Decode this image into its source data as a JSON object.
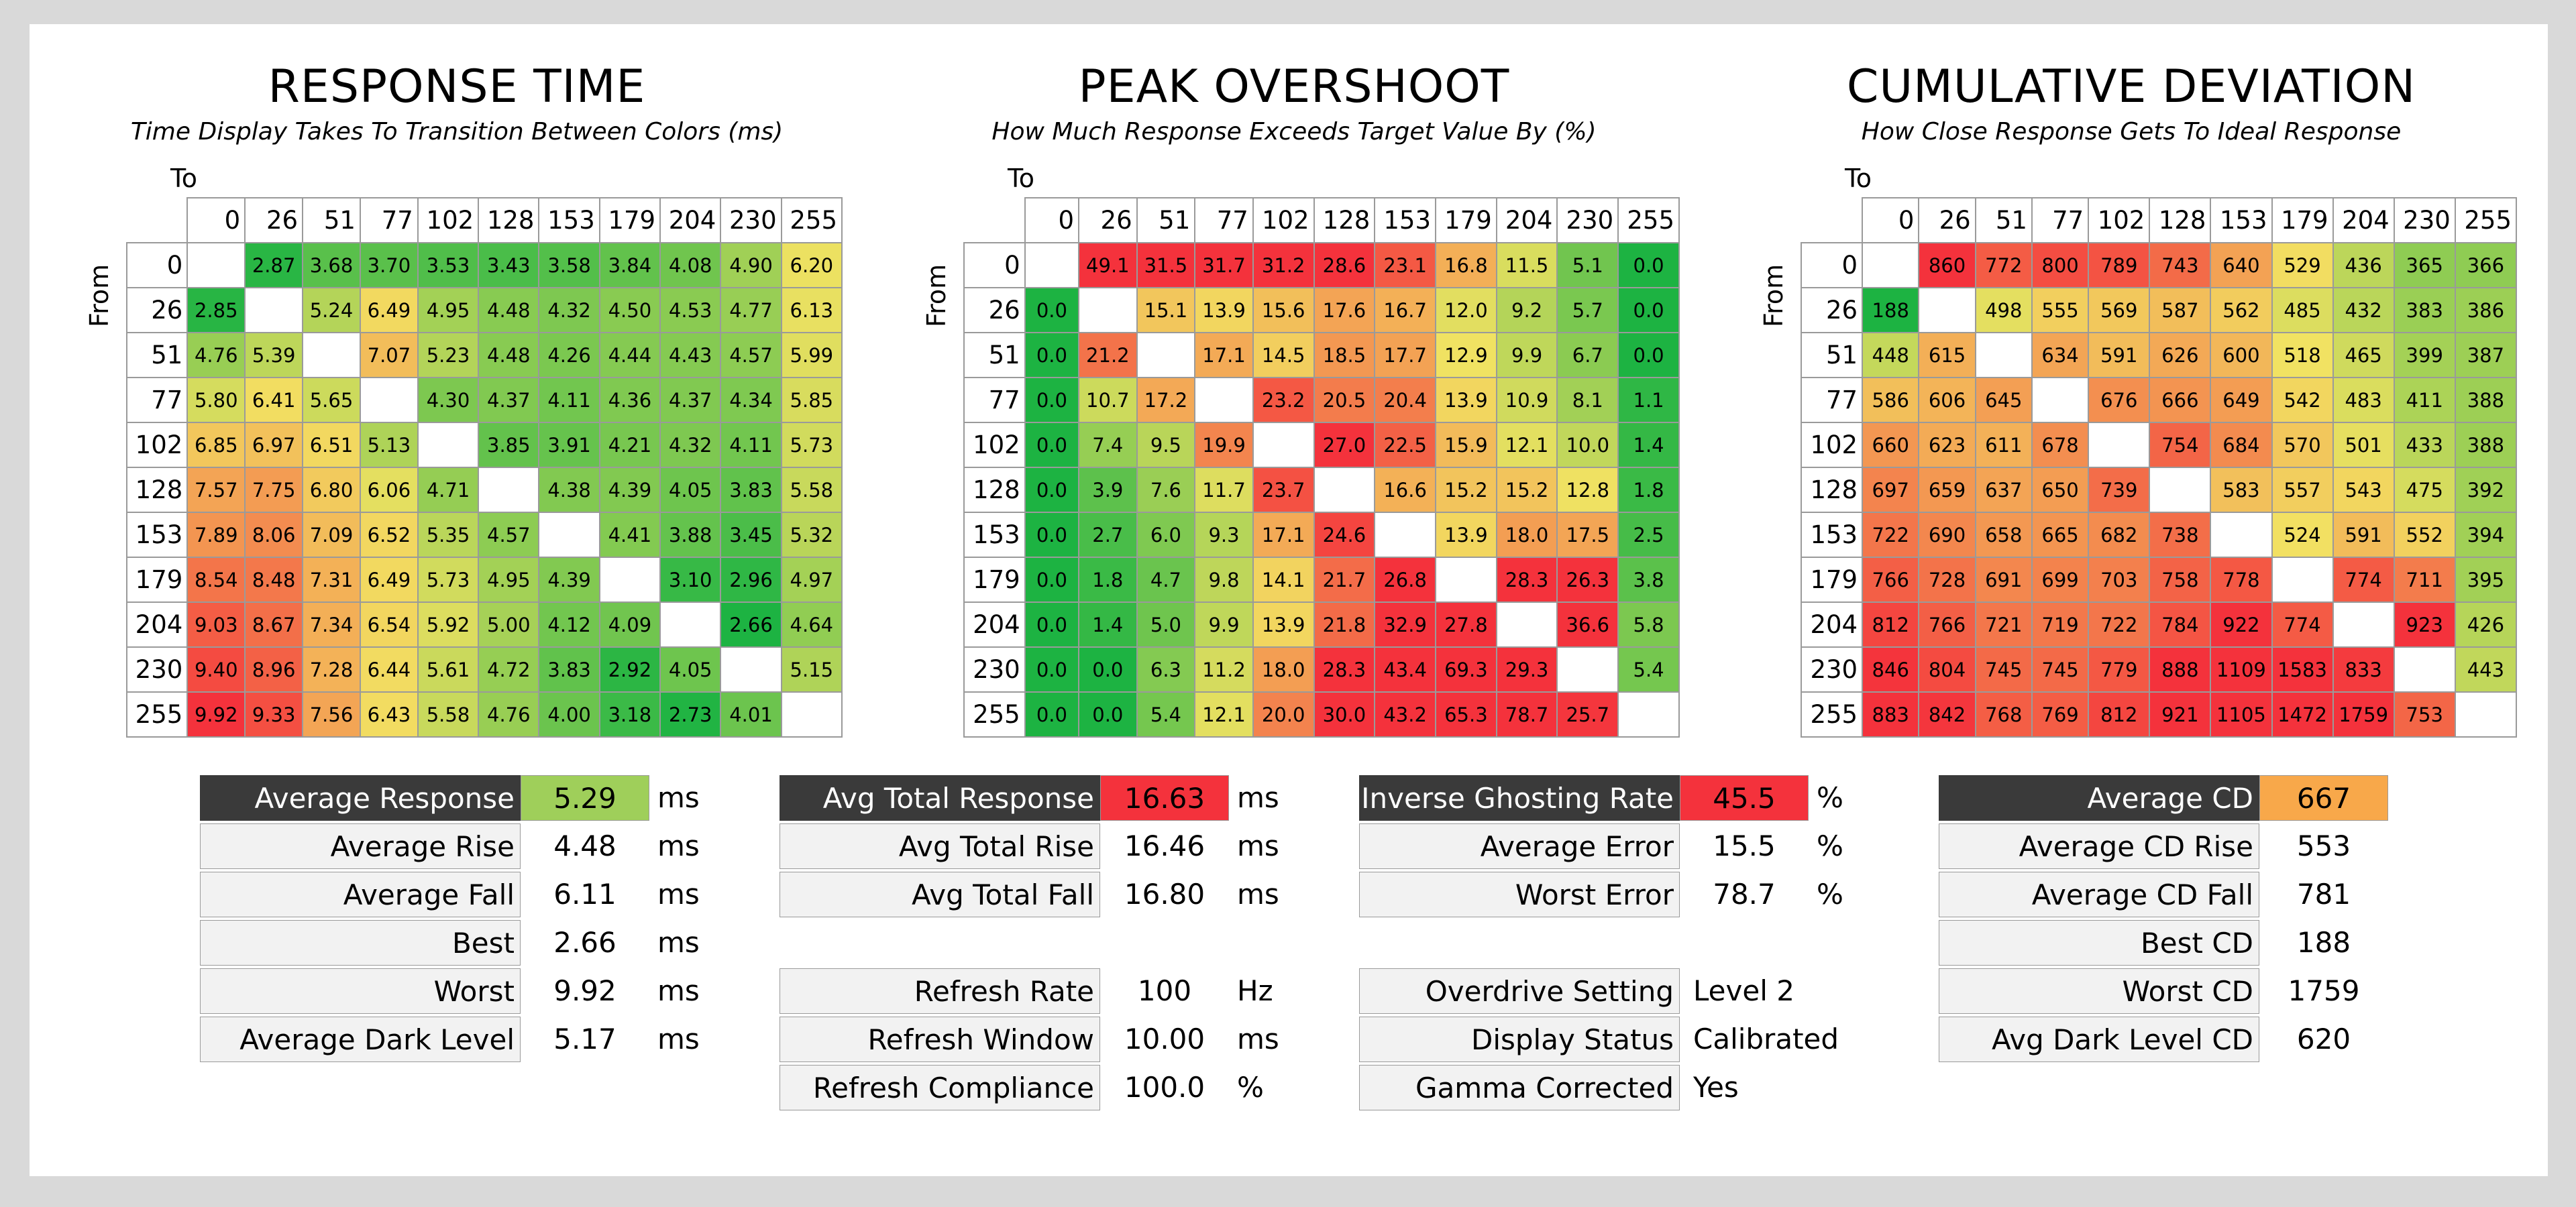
{
  "color_scale": {
    "good": "#1db342",
    "mid": "#f2e262",
    "bad": "#f4323c"
  },
  "panels": {
    "rt": {
      "title": "RESPONSE TIME",
      "subtitle": "Time Display Takes To Transition Between Colors (ms)",
      "to": "To",
      "from": "From"
    },
    "po": {
      "title": "PEAK OVERSHOOT",
      "subtitle": "How Much Response Exceeds Target Value By (%)",
      "to": "To",
      "from": "From"
    },
    "cd": {
      "title": "CUMULATIVE DEVIATION",
      "subtitle": "How Close Response Gets To Ideal Response",
      "to": "To",
      "from": "From"
    }
  },
  "chart_data": [
    {
      "type": "heatmap",
      "id": "rt",
      "title": "RESPONSE TIME",
      "subtitle": "Time Display Takes To Transition Between Colors (ms)",
      "xlabel": "To",
      "ylabel": "From",
      "x": [
        "0",
        "26",
        "51",
        "77",
        "102",
        "128",
        "153",
        "179",
        "204",
        "230",
        "255"
      ],
      "y": [
        "0",
        "26",
        "51",
        "77",
        "102",
        "128",
        "153",
        "179",
        "204",
        "230",
        "255"
      ],
      "decimals": 2,
      "scale": [
        2.66,
        6.3,
        9.92
      ],
      "values": [
        [
          null,
          2.87,
          3.68,
          3.7,
          3.53,
          3.43,
          3.58,
          3.84,
          4.08,
          4.9,
          6.2
        ],
        [
          2.85,
          null,
          5.24,
          6.49,
          4.95,
          4.48,
          4.32,
          4.5,
          4.53,
          4.77,
          6.13
        ],
        [
          4.76,
          5.39,
          null,
          7.07,
          5.23,
          4.48,
          4.26,
          4.44,
          4.43,
          4.57,
          5.99
        ],
        [
          5.8,
          6.41,
          5.65,
          null,
          4.3,
          4.37,
          4.11,
          4.36,
          4.37,
          4.34,
          5.85
        ],
        [
          6.85,
          6.97,
          6.51,
          5.13,
          null,
          3.85,
          3.91,
          4.21,
          4.32,
          4.11,
          5.73
        ],
        [
          7.57,
          7.75,
          6.8,
          6.06,
          4.71,
          null,
          4.38,
          4.39,
          4.05,
          3.83,
          5.58
        ],
        [
          7.89,
          8.06,
          7.09,
          6.52,
          5.35,
          4.57,
          null,
          4.41,
          3.88,
          3.45,
          5.32
        ],
        [
          8.54,
          8.48,
          7.31,
          6.49,
          5.73,
          4.95,
          4.39,
          null,
          3.1,
          2.96,
          4.97
        ],
        [
          9.03,
          8.67,
          7.34,
          6.54,
          5.92,
          5.0,
          4.12,
          4.09,
          null,
          2.66,
          4.64
        ],
        [
          9.4,
          8.96,
          7.28,
          6.44,
          5.61,
          4.72,
          3.83,
          2.92,
          4.05,
          null,
          5.15
        ],
        [
          9.92,
          9.33,
          7.56,
          6.43,
          5.58,
          4.76,
          4.0,
          3.18,
          2.73,
          4.01,
          null
        ]
      ]
    },
    {
      "type": "heatmap",
      "id": "po",
      "title": "PEAK OVERSHOOT",
      "subtitle": "How Much Response Exceeds Target Value By (%)",
      "xlabel": "To",
      "ylabel": "From",
      "x": [
        "0",
        "26",
        "51",
        "77",
        "102",
        "128",
        "153",
        "179",
        "204",
        "230",
        "255"
      ],
      "y": [
        "0",
        "26",
        "51",
        "77",
        "102",
        "128",
        "153",
        "179",
        "204",
        "230",
        "255"
      ],
      "decimals": 1,
      "scale": [
        0,
        13,
        26
      ],
      "values": [
        [
          null,
          49.1,
          31.5,
          31.7,
          31.2,
          28.6,
          23.1,
          16.8,
          11.5,
          5.1,
          0.0
        ],
        [
          0.0,
          null,
          15.1,
          13.9,
          15.6,
          17.6,
          16.7,
          12.0,
          9.2,
          5.7,
          0.0
        ],
        [
          0.0,
          21.2,
          null,
          17.1,
          14.5,
          18.5,
          17.7,
          12.9,
          9.9,
          6.7,
          0.0
        ],
        [
          0.0,
          10.7,
          17.2,
          null,
          23.2,
          20.5,
          20.4,
          13.9,
          10.9,
          8.1,
          1.1
        ],
        [
          0.0,
          7.4,
          9.5,
          19.9,
          null,
          27.0,
          22.5,
          15.9,
          12.1,
          10.0,
          1.4
        ],
        [
          0.0,
          3.9,
          7.6,
          11.7,
          23.7,
          null,
          16.6,
          15.2,
          15.2,
          12.8,
          1.8
        ],
        [
          0.0,
          2.7,
          6.0,
          9.3,
          17.1,
          24.6,
          null,
          13.9,
          18.0,
          17.5,
          2.5
        ],
        [
          0.0,
          1.8,
          4.7,
          9.8,
          14.1,
          21.7,
          26.8,
          null,
          28.3,
          26.3,
          3.8
        ],
        [
          0.0,
          1.4,
          5.0,
          9.9,
          13.9,
          21.8,
          32.9,
          27.8,
          null,
          36.6,
          5.8
        ],
        [
          0.0,
          0.0,
          6.3,
          11.2,
          18.0,
          28.3,
          43.4,
          69.3,
          29.3,
          null,
          5.4
        ],
        [
          0.0,
          0.0,
          5.4,
          12.1,
          20.0,
          30.0,
          43.2,
          65.3,
          78.7,
          25.7,
          null
        ]
      ]
    },
    {
      "type": "heatmap",
      "id": "cd",
      "title": "CUMULATIVE DEVIATION",
      "subtitle": "How Close Response Gets To Ideal Response",
      "xlabel": "To",
      "ylabel": "From",
      "x": [
        "0",
        "26",
        "51",
        "77",
        "102",
        "128",
        "153",
        "179",
        "204",
        "230",
        "255"
      ],
      "y": [
        "0",
        "26",
        "51",
        "77",
        "102",
        "128",
        "153",
        "179",
        "204",
        "230",
        "255"
      ],
      "decimals": 0,
      "scale": [
        188,
        520,
        850
      ],
      "values": [
        [
          null,
          860,
          772,
          800,
          789,
          743,
          640,
          529,
          436,
          365,
          366
        ],
        [
          188,
          null,
          498,
          555,
          569,
          587,
          562,
          485,
          432,
          383,
          386
        ],
        [
          448,
          615,
          null,
          634,
          591,
          626,
          600,
          518,
          465,
          399,
          387
        ],
        [
          586,
          606,
          645,
          null,
          676,
          666,
          649,
          542,
          483,
          411,
          388
        ],
        [
          660,
          623,
          611,
          678,
          null,
          754,
          684,
          570,
          501,
          433,
          388
        ],
        [
          697,
          659,
          637,
          650,
          739,
          null,
          583,
          557,
          543,
          475,
          392
        ],
        [
          722,
          690,
          658,
          665,
          682,
          738,
          null,
          524,
          591,
          552,
          394
        ],
        [
          766,
          728,
          691,
          699,
          703,
          758,
          778,
          null,
          774,
          711,
          395
        ],
        [
          812,
          766,
          721,
          719,
          722,
          784,
          922,
          774,
          null,
          923,
          426
        ],
        [
          846,
          804,
          745,
          745,
          779,
          888,
          1109,
          1583,
          833,
          null,
          443
        ],
        [
          883,
          842,
          768,
          769,
          812,
          921,
          1105,
          1472,
          1759,
          753,
          null
        ]
      ]
    }
  ],
  "stats": {
    "rt": [
      {
        "label": "Average Response",
        "value": "5.29",
        "unit": "ms",
        "header": true,
        "color": "#9fcf5a"
      },
      {
        "label": "Average Rise",
        "value": "4.48",
        "unit": "ms"
      },
      {
        "label": "Average Fall",
        "value": "6.11",
        "unit": "ms"
      },
      {
        "label": "Best",
        "value": "2.66",
        "unit": "ms"
      },
      {
        "label": "Worst",
        "value": "9.92",
        "unit": "ms"
      },
      {
        "label": "Average Dark Level",
        "value": "5.17",
        "unit": "ms"
      }
    ],
    "tr": [
      {
        "label": "Avg Total Response",
        "value": "16.63",
        "unit": "ms",
        "header": true,
        "color": "#f4323c"
      },
      {
        "label": "Avg Total Rise",
        "value": "16.46",
        "unit": "ms"
      },
      {
        "label": "Avg Total Fall",
        "value": "16.80",
        "unit": "ms"
      },
      {
        "gap": true
      },
      {
        "label": "Refresh Rate",
        "value": "100",
        "unit": "Hz"
      },
      {
        "label": "Refresh Window",
        "value": "10.00",
        "unit": "ms"
      },
      {
        "label": "Refresh Compliance",
        "value": "100.0",
        "unit": "%"
      }
    ],
    "ig": [
      {
        "label": "Inverse Ghosting Rate",
        "value": "45.5",
        "unit": "%",
        "header": true,
        "color": "#f4323c"
      },
      {
        "label": "Average Error",
        "value": "15.5",
        "unit": "%"
      },
      {
        "label": "Worst Error",
        "value": "78.7",
        "unit": "%"
      },
      {
        "gap": true
      },
      {
        "label": "Overdrive Setting",
        "value": "Level 2",
        "unit": "",
        "left": true
      },
      {
        "label": "Display Status",
        "value": "Calibrated",
        "unit": "",
        "left": true
      },
      {
        "label": "Gamma Corrected",
        "value": "Yes",
        "unit": "",
        "left": true
      }
    ],
    "cd": [
      {
        "label": "Average CD",
        "value": "667",
        "unit": "",
        "header": true,
        "color": "#f8a84a"
      },
      {
        "label": "Average CD Rise",
        "value": "553",
        "unit": ""
      },
      {
        "label": "Average CD Fall",
        "value": "781",
        "unit": ""
      },
      {
        "label": "Best CD",
        "value": "188",
        "unit": ""
      },
      {
        "label": "Worst CD",
        "value": "1759",
        "unit": ""
      },
      {
        "label": "Avg Dark Level CD",
        "value": "620",
        "unit": ""
      }
    ]
  }
}
